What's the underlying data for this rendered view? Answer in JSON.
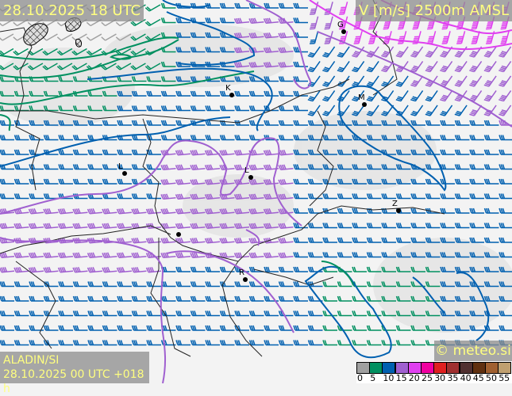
{
  "header": {
    "valid_time": "28.10.2025 18 UTC",
    "parameter": "V [m/s] 2500m AMSL"
  },
  "footer": {
    "model": "ALADIN/SI",
    "run": "28.10.2025 00 UTC +018 h",
    "copyright": "© meteo.si"
  },
  "legend": {
    "unit": "m/s",
    "ticks": [
      "0",
      "5",
      "10",
      "15",
      "20",
      "25",
      "30",
      "35",
      "40",
      "45",
      "50",
      "55"
    ],
    "colors": [
      "#a0a0a0",
      "#009060",
      "#0060b0",
      "#a060d0",
      "#e040f0",
      "#f000a0",
      "#e02020",
      "#a03030",
      "#503030",
      "#603010",
      "#a06030",
      "#c0a070"
    ]
  },
  "cities": [
    {
      "label": "G"
    },
    {
      "label": "K"
    },
    {
      "label": "M"
    },
    {
      "label": "L"
    },
    {
      "label": "L"
    },
    {
      "label": "Z"
    },
    {
      "label": "R"
    },
    {
      "label": ""
    }
  ],
  "map": {
    "background": "#f3f3f3",
    "wind_barb_icon": "wind-barb-icon",
    "hatch_icon": "precipitation-hatch-icon"
  }
}
